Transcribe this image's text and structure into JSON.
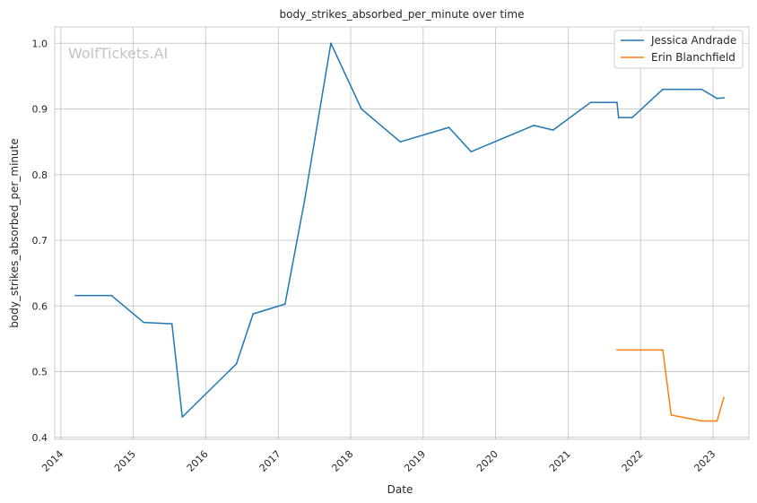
{
  "chart_data": {
    "type": "line",
    "title": "body_strikes_absorbed_per_minute over time",
    "xlabel": "Date",
    "ylabel": "body_strikes_absorbed_per_minute",
    "watermark": "WolfTickets.AI",
    "x_ticks": [
      "2014",
      "2015",
      "2016",
      "2017",
      "2018",
      "2019",
      "2020",
      "2021",
      "2022",
      "2023"
    ],
    "y_ticks": [
      "0.4",
      "0.5",
      "0.6",
      "0.7",
      "0.8",
      "0.9",
      "1.0"
    ],
    "xlim": [
      "2013-12-01",
      "2023-07-01"
    ],
    "ylim": [
      0.397,
      1.025
    ],
    "grid": true,
    "legend_position": "top-right",
    "series": [
      {
        "name": "Jessica Andrade",
        "color": "#1f77b4",
        "points": [
          [
            "2014-03-15",
            0.616
          ],
          [
            "2014-09-13",
            0.616
          ],
          [
            "2015-02-22",
            0.575
          ],
          [
            "2015-07-15",
            0.573
          ],
          [
            "2015-09-05",
            0.431
          ],
          [
            "2016-06-04",
            0.512
          ],
          [
            "2016-08-27",
            0.588
          ],
          [
            "2017-02-04",
            0.603
          ],
          [
            "2017-05-13",
            0.76
          ],
          [
            "2017-09-23",
            1.0
          ],
          [
            "2018-02-24",
            0.9
          ],
          [
            "2018-09-08",
            0.85
          ],
          [
            "2019-05-11",
            0.872
          ],
          [
            "2019-08-31",
            0.835
          ],
          [
            "2020-07-11",
            0.875
          ],
          [
            "2020-10-17",
            0.868
          ],
          [
            "2021-04-24",
            0.91
          ],
          [
            "2021-09-04",
            0.91
          ],
          [
            "2021-09-12",
            0.887
          ],
          [
            "2021-11-20",
            0.887
          ],
          [
            "2022-04-23",
            0.93
          ],
          [
            "2022-11-05",
            0.93
          ],
          [
            "2023-01-21",
            0.916
          ],
          [
            "2023-02-25",
            0.917
          ]
        ]
      },
      {
        "name": "Erin Blanchfield",
        "color": "#ff7f0e",
        "points": [
          [
            "2021-09-04",
            0.533
          ],
          [
            "2021-11-20",
            0.533
          ],
          [
            "2022-04-23",
            0.533
          ],
          [
            "2022-06-04",
            0.434
          ],
          [
            "2022-11-05",
            0.425
          ],
          [
            "2023-01-21",
            0.425
          ],
          [
            "2023-02-25",
            0.461
          ]
        ]
      }
    ]
  }
}
